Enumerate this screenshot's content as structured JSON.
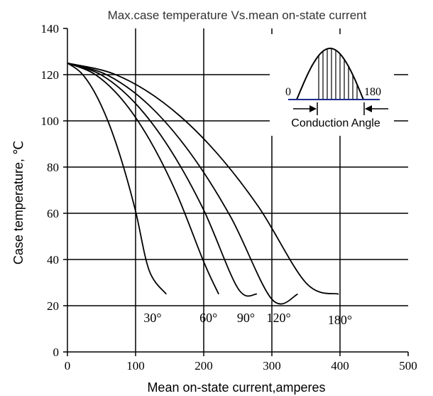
{
  "chart_data": {
    "type": "line",
    "title": "Max.case temperature Vs.mean on-state current",
    "xlabel": "Mean on-state current,amperes",
    "ylabel": "Case temperature, ℃",
    "xlim": [
      0,
      500
    ],
    "ylim": [
      0,
      140
    ],
    "xticks": [
      "0",
      "100",
      "200",
      "300",
      "400",
      "500"
    ],
    "yticks": [
      "0",
      "20",
      "40",
      "60",
      "80",
      "100",
      "120",
      "140"
    ],
    "grid": true,
    "series": [
      {
        "name": "30°",
        "x": [
          0,
          20,
          40,
          60,
          80,
          100,
          120,
          145
        ],
        "y": [
          125,
          120.8,
          112.3,
          99.5,
          82.3,
          60.9,
          35.2,
          25
        ]
      },
      {
        "name": "60°",
        "x": [
          0,
          40,
          80,
          120,
          160,
          200,
          222
        ],
        "y": [
          125,
          120.2,
          109.3,
          92.1,
          68.7,
          39,
          25
        ]
      },
      {
        "name": "90°",
        "x": [
          0,
          50,
          100,
          150,
          200,
          250,
          278
        ],
        "y": [
          125,
          119.8,
          107.5,
          88,
          61.4,
          27.6,
          25
        ]
      },
      {
        "name": "120°",
        "x": [
          0,
          60,
          120,
          180,
          240,
          300,
          338
        ],
        "y": [
          125,
          119.6,
          106.7,
          86.2,
          58.2,
          22.8,
          25
        ]
      },
      {
        "name": "180°",
        "x": [
          0,
          70,
          140,
          210,
          280,
          350,
          398
        ],
        "y": [
          125,
          120.1,
          108.1,
          89.1,
          63,
          29.9,
          25
        ]
      }
    ],
    "series_labels": [
      {
        "text": "30°",
        "x": 125,
        "y": 13
      },
      {
        "text": "60°",
        "x": 207,
        "y": 13
      },
      {
        "text": "90°",
        "x": 262,
        "y": 13
      },
      {
        "text": "120°",
        "x": 310,
        "y": 13
      },
      {
        "text": "180°",
        "x": 400,
        "y": 12
      }
    ],
    "inset": {
      "label_left": "0",
      "label_right": "180",
      "caption": "Conduction Angle"
    }
  }
}
